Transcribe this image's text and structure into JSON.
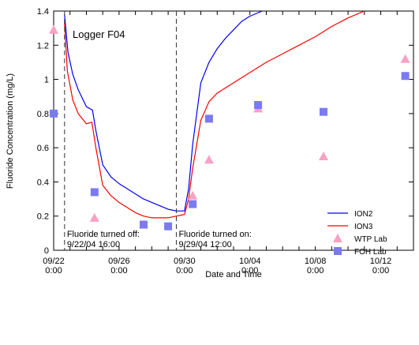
{
  "chart_data": {
    "type": "line",
    "xlabel": "Date and Time",
    "ylabel": "Fluoride Concentration (mg/L)",
    "title_annotation": "Logger F04",
    "xlim": [
      "2004-09-22 00:00",
      "2004-10-14 00:00"
    ],
    "ylim": [
      0,
      1.4
    ],
    "x_ticks": [
      {
        "at": "2004-09-22 00:00",
        "line1": "09/22",
        "line2": "0:00"
      },
      {
        "at": "2004-09-26 00:00",
        "line1": "09/26",
        "line2": "0:00"
      },
      {
        "at": "2004-09-30 00:00",
        "line1": "09/30",
        "line2": "0:00"
      },
      {
        "at": "2004-10-04 00:00",
        "line1": "10/04",
        "line2": "0:00"
      },
      {
        "at": "2004-10-08 00:00",
        "line1": "10/08",
        "line2": "0:00"
      },
      {
        "at": "2004-10-12 00:00",
        "line1": "10/12",
        "line2": "0:00"
      }
    ],
    "y_ticks": [
      "0",
      "0.2",
      "0.4",
      "0.6",
      "0.8",
      "1",
      "1.2",
      "1.4"
    ],
    "annotations": [
      {
        "at": "2004-09-22 16:00",
        "line1": "Fluoride turned off:",
        "line2": "9/22/04  16:00"
      },
      {
        "at": "2004-09-29 12:00",
        "line1": "Fluoride turned on:",
        "line2": "9/29/04  12:00"
      }
    ],
    "legend_position": "bottom-right",
    "colors": {
      "ion2": "#0000ff",
      "ion3": "#ff0000",
      "wtp": "#f7a1c4",
      "foh": "#7b7bef"
    },
    "series": [
      {
        "name": "ION2",
        "kind": "line",
        "points": [
          [
            "2004-09-22 16:00",
            1.38
          ],
          [
            "2004-09-22 21:00",
            1.16
          ],
          [
            "2004-09-23 04:00",
            1.03
          ],
          [
            "2004-09-23 12:00",
            0.94
          ],
          [
            "2004-09-24 00:00",
            0.84
          ],
          [
            "2004-09-24 09:00",
            0.82
          ],
          [
            "2004-09-24 14:00",
            0.7
          ],
          [
            "2004-09-25 00:00",
            0.5
          ],
          [
            "2004-09-25 12:00",
            0.43
          ],
          [
            "2004-09-26 00:00",
            0.39
          ],
          [
            "2004-09-26 12:00",
            0.36
          ],
          [
            "2004-09-27 00:00",
            0.33
          ],
          [
            "2004-09-27 12:00",
            0.3
          ],
          [
            "2004-09-28 00:00",
            0.28
          ],
          [
            "2004-09-28 12:00",
            0.26
          ],
          [
            "2004-09-29 00:00",
            0.24
          ],
          [
            "2004-09-29 12:00",
            0.23
          ],
          [
            "2004-09-30 00:00",
            0.23
          ],
          [
            "2004-09-30 06:00",
            0.36
          ],
          [
            "2004-09-30 12:00",
            0.62
          ],
          [
            "2004-10-01 00:00",
            0.98
          ],
          [
            "2004-10-01 12:00",
            1.1
          ],
          [
            "2004-10-02 00:00",
            1.18
          ],
          [
            "2004-10-02 12:00",
            1.24
          ],
          [
            "2004-10-03 00:00",
            1.29
          ],
          [
            "2004-10-03 12:00",
            1.34
          ],
          [
            "2004-10-04 00:00",
            1.37
          ],
          [
            "2004-10-04 18:00",
            1.4
          ]
        ]
      },
      {
        "name": "ION3",
        "kind": "line",
        "points": [
          [
            "2004-09-22 16:00",
            1.33
          ],
          [
            "2004-09-22 20:00",
            1.05
          ],
          [
            "2004-09-23 04:00",
            0.88
          ],
          [
            "2004-09-23 12:00",
            0.8
          ],
          [
            "2004-09-24 00:00",
            0.74
          ],
          [
            "2004-09-24 08:00",
            0.75
          ],
          [
            "2004-09-24 14:00",
            0.6
          ],
          [
            "2004-09-25 00:00",
            0.38
          ],
          [
            "2004-09-25 12:00",
            0.32
          ],
          [
            "2004-09-26 00:00",
            0.28
          ],
          [
            "2004-09-26 12:00",
            0.25
          ],
          [
            "2004-09-27 00:00",
            0.22
          ],
          [
            "2004-09-27 12:00",
            0.2
          ],
          [
            "2004-09-28 00:00",
            0.19
          ],
          [
            "2004-09-28 12:00",
            0.19
          ],
          [
            "2004-09-29 00:00",
            0.19
          ],
          [
            "2004-09-29 12:00",
            0.2
          ],
          [
            "2004-09-30 00:00",
            0.21
          ],
          [
            "2004-09-30 06:00",
            0.3
          ],
          [
            "2004-09-30 12:00",
            0.48
          ],
          [
            "2004-10-01 00:00",
            0.76
          ],
          [
            "2004-10-01 12:00",
            0.87
          ],
          [
            "2004-10-02 00:00",
            0.92
          ],
          [
            "2004-10-03 00:00",
            0.98
          ],
          [
            "2004-10-04 00:00",
            1.04
          ],
          [
            "2004-10-05 00:00",
            1.1
          ],
          [
            "2004-10-06 00:00",
            1.15
          ],
          [
            "2004-10-07 00:00",
            1.2
          ],
          [
            "2004-10-08 00:00",
            1.25
          ],
          [
            "2004-10-09 00:00",
            1.31
          ],
          [
            "2004-10-10 00:00",
            1.36
          ],
          [
            "2004-10-11 00:00",
            1.4
          ]
        ]
      },
      {
        "name": "WTP Lab",
        "kind": "marker",
        "marker": "triangle",
        "points": [
          [
            "2004-09-22 00:00",
            1.29
          ],
          [
            "2004-09-24 12:00",
            0.19
          ],
          [
            "2004-09-27 12:00",
            0.15
          ],
          [
            "2004-09-30 12:00",
            0.32
          ],
          [
            "2004-10-01 12:00",
            0.53
          ],
          [
            "2004-10-04 12:00",
            0.83
          ],
          [
            "2004-10-08 12:00",
            0.55
          ],
          [
            "2004-10-13 12:00",
            1.12
          ]
        ]
      },
      {
        "name": "FOH Lab",
        "kind": "marker",
        "marker": "square",
        "points": [
          [
            "2004-09-22 00:00",
            0.8
          ],
          [
            "2004-09-24 12:00",
            0.34
          ],
          [
            "2004-09-27 12:00",
            0.15
          ],
          [
            "2004-09-29 00:00",
            0.14
          ],
          [
            "2004-09-30 12:00",
            0.27
          ],
          [
            "2004-10-01 12:00",
            0.77
          ],
          [
            "2004-10-04 12:00",
            0.85
          ],
          [
            "2004-10-08 12:00",
            0.81
          ],
          [
            "2004-10-13 12:00",
            1.02
          ]
        ]
      }
    ]
  }
}
